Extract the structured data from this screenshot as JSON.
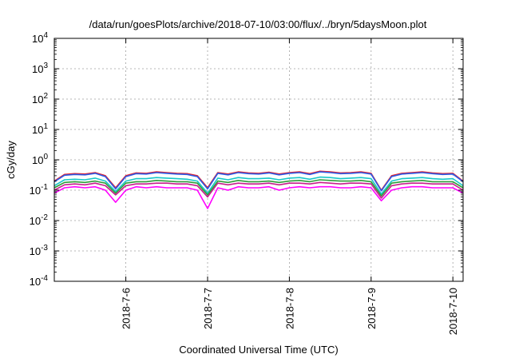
{
  "chart_data": {
    "type": "line",
    "title": "/data/run/goesPlots/archive/2018-07-10/03:00/flux/../bryn/5daysMoon.plot",
    "xlabel": "Coordinated Universal Time (UTC)",
    "ylabel": "cGy/day",
    "y_scale": "log",
    "ylim": [
      0.0001,
      10000
    ],
    "y_ticks": [
      {
        "value": 0.0001,
        "base": "10",
        "exp": "-4"
      },
      {
        "value": 0.001,
        "base": "10",
        "exp": "-3"
      },
      {
        "value": 0.01,
        "base": "10",
        "exp": "-2"
      },
      {
        "value": 0.1,
        "base": "10",
        "exp": "-1"
      },
      {
        "value": 1,
        "base": "10",
        "exp": "0"
      },
      {
        "value": 10,
        "base": "10",
        "exp": "1"
      },
      {
        "value": 100,
        "base": "10",
        "exp": "2"
      },
      {
        "value": 1000,
        "base": "10",
        "exp": "3"
      },
      {
        "value": 10000,
        "base": "10",
        "exp": "4"
      }
    ],
    "xlim": [
      "2018-07-05 03:00",
      "2018-07-10 03:00"
    ],
    "x_ticks": [
      {
        "value": "2018-07-06 00:00",
        "label": "2018-7-6"
      },
      {
        "value": "2018-07-07 00:00",
        "label": "2018-7-7"
      },
      {
        "value": "2018-07-08 00:00",
        "label": "2018-7-8"
      },
      {
        "value": "2018-07-09 00:00",
        "label": "2018-7-9"
      },
      {
        "value": "2018-07-10 00:00",
        "label": "2018-7-10"
      }
    ],
    "grid": true,
    "legend": "none",
    "x": [
      "2018-07-05 03:00",
      "2018-07-05 06:00",
      "2018-07-05 09:00",
      "2018-07-05 12:00",
      "2018-07-05 15:00",
      "2018-07-05 18:00",
      "2018-07-05 21:00",
      "2018-07-06 00:00",
      "2018-07-06 03:00",
      "2018-07-06 06:00",
      "2018-07-06 09:00",
      "2018-07-06 12:00",
      "2018-07-06 15:00",
      "2018-07-06 18:00",
      "2018-07-06 21:00",
      "2018-07-07 00:00",
      "2018-07-07 03:00",
      "2018-07-07 06:00",
      "2018-07-07 09:00",
      "2018-07-07 12:00",
      "2018-07-07 15:00",
      "2018-07-07 18:00",
      "2018-07-07 21:00",
      "2018-07-08 00:00",
      "2018-07-08 03:00",
      "2018-07-08 06:00",
      "2018-07-08 09:00",
      "2018-07-08 12:00",
      "2018-07-08 15:00",
      "2018-07-08 18:00",
      "2018-07-08 21:00",
      "2018-07-09 00:00",
      "2018-07-09 03:00",
      "2018-07-09 06:00",
      "2018-07-09 09:00",
      "2018-07-09 12:00",
      "2018-07-09 15:00",
      "2018-07-09 18:00",
      "2018-07-09 21:00",
      "2018-07-10 00:00",
      "2018-07-10 03:00"
    ],
    "series": [
      {
        "color": "#e8202a",
        "values": [
          0.2,
          0.33,
          0.35,
          0.34,
          0.38,
          0.3,
          0.12,
          0.3,
          0.37,
          0.36,
          0.4,
          0.38,
          0.36,
          0.35,
          0.3,
          0.12,
          0.38,
          0.34,
          0.4,
          0.37,
          0.36,
          0.39,
          0.34,
          0.38,
          0.4,
          0.35,
          0.42,
          0.4,
          0.37,
          0.38,
          0.4,
          0.36,
          0.1,
          0.3,
          0.36,
          0.38,
          0.4,
          0.37,
          0.35,
          0.36,
          0.2
        ]
      },
      {
        "color": "#2a5be8",
        "values": [
          0.19,
          0.31,
          0.33,
          0.32,
          0.36,
          0.28,
          0.11,
          0.28,
          0.35,
          0.34,
          0.38,
          0.36,
          0.34,
          0.33,
          0.28,
          0.11,
          0.36,
          0.32,
          0.38,
          0.35,
          0.34,
          0.37,
          0.32,
          0.36,
          0.38,
          0.33,
          0.4,
          0.38,
          0.35,
          0.36,
          0.38,
          0.34,
          0.095,
          0.28,
          0.34,
          0.36,
          0.38,
          0.35,
          0.33,
          0.34,
          0.19
        ]
      },
      {
        "color": "#18c8c8",
        "values": [
          0.14,
          0.22,
          0.23,
          0.22,
          0.25,
          0.2,
          0.09,
          0.2,
          0.24,
          0.24,
          0.26,
          0.25,
          0.24,
          0.23,
          0.2,
          0.08,
          0.25,
          0.22,
          0.26,
          0.24,
          0.24,
          0.25,
          0.22,
          0.25,
          0.26,
          0.23,
          0.27,
          0.26,
          0.24,
          0.25,
          0.26,
          0.24,
          0.075,
          0.2,
          0.24,
          0.25,
          0.26,
          0.24,
          0.23,
          0.24,
          0.14
        ]
      },
      {
        "color": "#2e9e3a",
        "values": [
          0.12,
          0.18,
          0.19,
          0.18,
          0.2,
          0.17,
          0.08,
          0.17,
          0.19,
          0.19,
          0.21,
          0.2,
          0.19,
          0.19,
          0.17,
          0.07,
          0.2,
          0.18,
          0.21,
          0.19,
          0.19,
          0.2,
          0.18,
          0.2,
          0.21,
          0.19,
          0.22,
          0.21,
          0.2,
          0.2,
          0.21,
          0.19,
          0.065,
          0.17,
          0.19,
          0.2,
          0.21,
          0.19,
          0.19,
          0.19,
          0.12
        ]
      },
      {
        "color": "#c81e8c",
        "values": [
          0.1,
          0.15,
          0.16,
          0.15,
          0.17,
          0.14,
          0.07,
          0.14,
          0.16,
          0.16,
          0.17,
          0.17,
          0.16,
          0.16,
          0.14,
          0.06,
          0.17,
          0.15,
          0.17,
          0.16,
          0.16,
          0.17,
          0.15,
          0.17,
          0.17,
          0.16,
          0.18,
          0.17,
          0.16,
          0.17,
          0.17,
          0.16,
          0.055,
          0.14,
          0.16,
          0.17,
          0.17,
          0.16,
          0.16,
          0.16,
          0.1
        ]
      },
      {
        "color": "#ff00ff",
        "values": [
          0.08,
          0.12,
          0.13,
          0.12,
          0.13,
          0.1,
          0.04,
          0.1,
          0.13,
          0.12,
          0.13,
          0.12,
          0.12,
          0.12,
          0.1,
          0.025,
          0.12,
          0.1,
          0.13,
          0.12,
          0.12,
          0.13,
          0.1,
          0.12,
          0.13,
          0.12,
          0.13,
          0.13,
          0.12,
          0.12,
          0.13,
          0.12,
          0.045,
          0.1,
          0.12,
          0.13,
          0.13,
          0.12,
          0.12,
          0.12,
          0.08
        ]
      }
    ]
  }
}
